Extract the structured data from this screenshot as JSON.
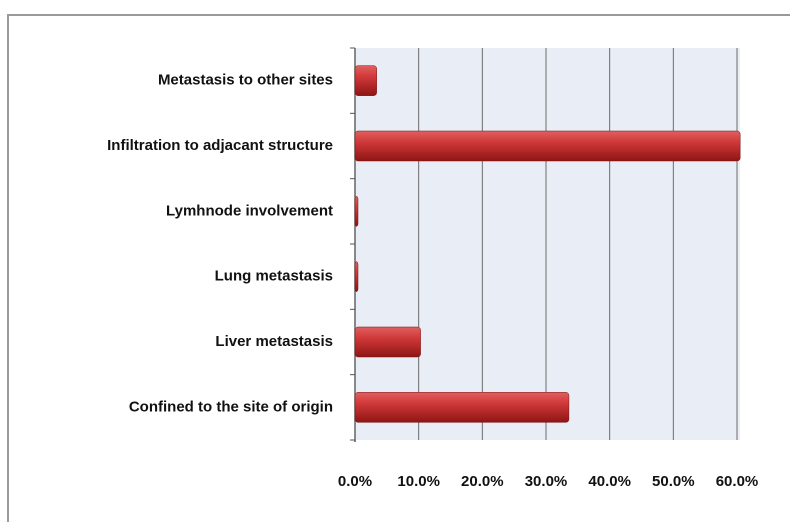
{
  "chart_data": {
    "type": "hbar",
    "categories": [
      "Metastasis to other sites",
      "Infiltration to adjacant structure",
      "Lymhnode involvement",
      "Lung metastasis",
      "Liver metastasis",
      "Confined to the site of origin"
    ],
    "values": [
      3.4,
      60.5,
      0,
      0,
      10.3,
      33.6
    ],
    "color": "#c62a2a",
    "xlim": [
      0,
      60
    ],
    "xticks": [
      {
        "value": 0,
        "label": "0.0%"
      },
      {
        "value": 10,
        "label": "10.0%"
      },
      {
        "value": 20,
        "label": "20.0%"
      },
      {
        "value": 30,
        "label": "30.0%"
      },
      {
        "value": 40,
        "label": "40.0%"
      },
      {
        "value": 50,
        "label": "50.0%"
      },
      {
        "value": 60,
        "label": "60.0%"
      }
    ],
    "grid": true
  }
}
